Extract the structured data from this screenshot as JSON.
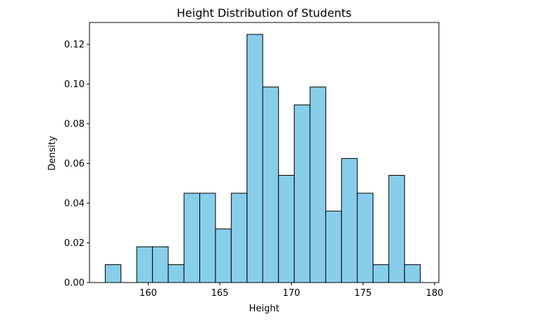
{
  "chart_data": {
    "type": "bar",
    "title": "Height Distribution of Students",
    "xlabel": "Height",
    "ylabel": "Density",
    "xlim": [
      155.9,
      180.3
    ],
    "ylim": [
      0,
      0.131
    ],
    "xticks": [
      "160",
      "165",
      "170",
      "175",
      "180"
    ],
    "xtick_values": [
      160,
      165,
      170,
      175,
      180
    ],
    "yticks": [
      "0.00",
      "0.02",
      "0.04",
      "0.06",
      "0.08",
      "0.10",
      "0.12"
    ],
    "ytick_values": [
      0,
      0.02,
      0.04,
      0.06,
      0.08,
      0.1,
      0.12
    ],
    "bins": [
      {
        "x0": 157.0,
        "x1": 158.1,
        "value": 0.009
      },
      {
        "x0": 158.1,
        "x1": 159.2,
        "value": 0.0
      },
      {
        "x0": 159.2,
        "x1": 160.3,
        "value": 0.018
      },
      {
        "x0": 160.3,
        "x1": 161.4,
        "value": 0.018
      },
      {
        "x0": 161.4,
        "x1": 162.5,
        "value": 0.009
      },
      {
        "x0": 162.5,
        "x1": 163.6,
        "value": 0.045
      },
      {
        "x0": 163.6,
        "x1": 164.7,
        "value": 0.045
      },
      {
        "x0": 164.7,
        "x1": 165.8,
        "value": 0.027
      },
      {
        "x0": 165.8,
        "x1": 166.9,
        "value": 0.045
      },
      {
        "x0": 166.9,
        "x1": 168.0,
        "value": 0.125
      },
      {
        "x0": 168.0,
        "x1": 169.1,
        "value": 0.0985
      },
      {
        "x0": 169.1,
        "x1": 170.2,
        "value": 0.054
      },
      {
        "x0": 170.2,
        "x1": 171.3,
        "value": 0.0895
      },
      {
        "x0": 171.3,
        "x1": 172.4,
        "value": 0.0985
      },
      {
        "x0": 172.4,
        "x1": 173.5,
        "value": 0.036
      },
      {
        "x0": 173.5,
        "x1": 174.6,
        "value": 0.0625
      },
      {
        "x0": 174.6,
        "x1": 175.7,
        "value": 0.045
      },
      {
        "x0": 175.7,
        "x1": 176.8,
        "value": 0.009
      },
      {
        "x0": 176.8,
        "x1": 177.9,
        "value": 0.054
      },
      {
        "x0": 177.9,
        "x1": 179.0,
        "value": 0.009
      }
    ],
    "bar_color": "#87ceeb",
    "edge_color": "#000000",
    "grid": false,
    "legend": "none"
  }
}
